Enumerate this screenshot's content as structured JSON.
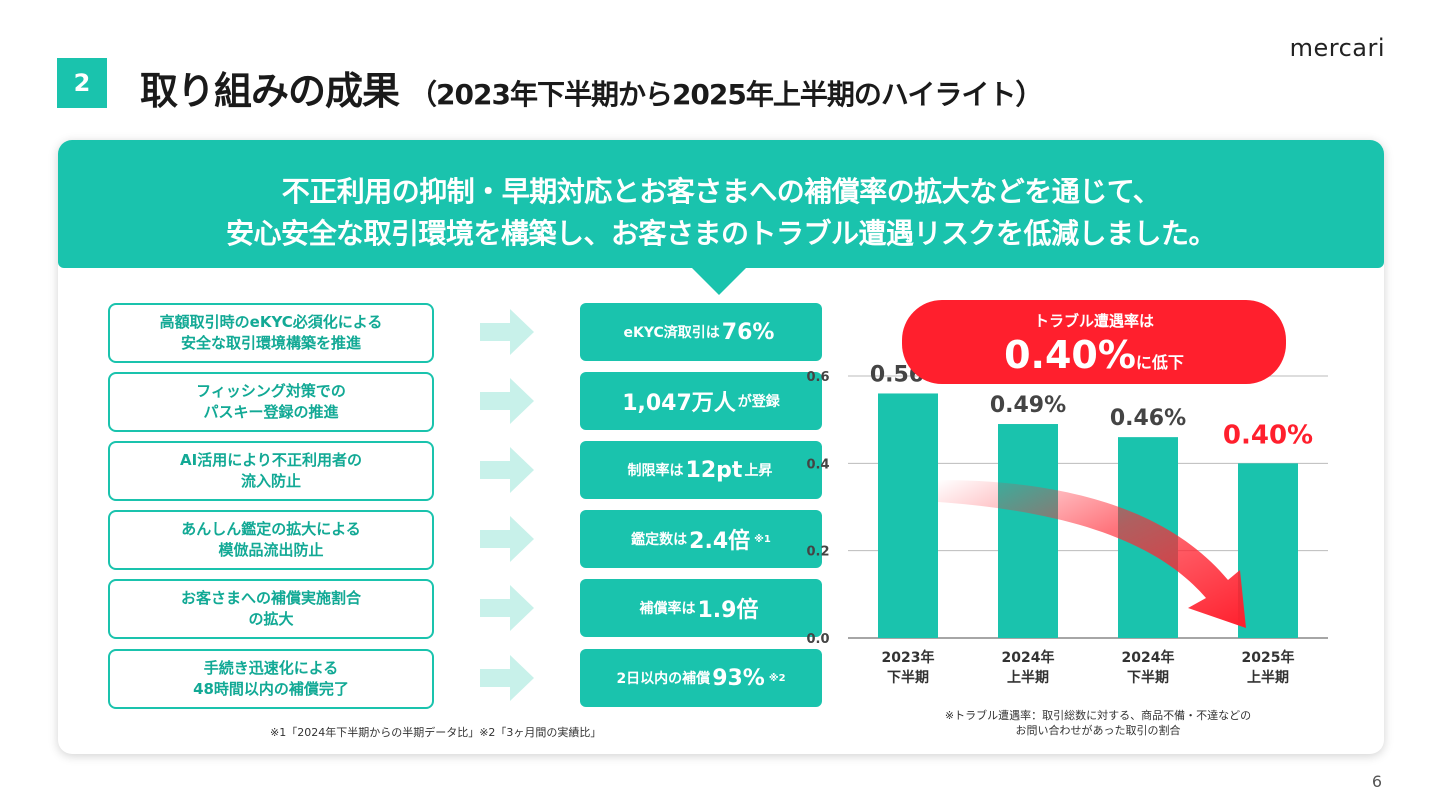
{
  "header": {
    "section_number": "2",
    "title": "取り組みの成果",
    "subtitle": "（2023年下半期から2025年上半期のハイライト）",
    "logo": "mercari"
  },
  "banner": {
    "line1": "不正利用の抑制・早期対応とお客さまへの補償率の拡大などを通じて、",
    "line2": "安心安全な取引環境を構築し、お客さまのトラブル遭遇リスクを低減しました。"
  },
  "rows": [
    {
      "initiative": [
        "高額取引時のeKYC必須化による",
        "安全な取引環境構築を推進"
      ],
      "result": {
        "pre": "eKYC済取引は",
        "big": "76%",
        "post": "",
        "note": ""
      }
    },
    {
      "initiative": [
        "フィッシング対策での",
        "パスキー登録の推進"
      ],
      "result": {
        "pre": "",
        "big": "1,047万人",
        "post": "が登録",
        "note": ""
      }
    },
    {
      "initiative": [
        "AI活用により不正利用者の",
        "流入防止"
      ],
      "result": {
        "pre": "制限率は",
        "big": "12pt",
        "post": "上昇",
        "note": ""
      }
    },
    {
      "initiative": [
        "あんしん鑑定の拡大による",
        "模倣品流出防止"
      ],
      "result": {
        "pre": "鑑定数は",
        "big": "2.4倍",
        "post": "",
        "note": "※1"
      }
    },
    {
      "initiative": [
        "お客さまへの補償実施割合",
        "の拡大"
      ],
      "result": {
        "pre": "補償率は",
        "big": "1.9倍",
        "post": "",
        "note": ""
      }
    },
    {
      "initiative": [
        "手続き迅速化による",
        "48時間以内の補償完了"
      ],
      "result": {
        "pre": "2日以内の補償",
        "big": "93%",
        "post": "",
        "note": "※2"
      }
    }
  ],
  "footnote_left": "※1「2024年下半期からの半期データ比」※2「3ヶ月間の実績比」",
  "footnote_right": [
    "※トラブル遭遇率：取引総数に対する、商品不備・不達などの",
    "お問い合わせがあった取引の割合"
  ],
  "page_number": "6",
  "colors": {
    "accent": "#1ac3ad",
    "highlight": "#ff1f2d",
    "text": "#1a1a1a"
  },
  "chart_data": {
    "type": "bar",
    "categories": [
      [
        "2023年",
        "下半期"
      ],
      [
        "2024年",
        "上半期"
      ],
      [
        "2024年",
        "下半期"
      ],
      [
        "2025年",
        "上半期"
      ]
    ],
    "values": [
      0.56,
      0.49,
      0.46,
      0.4
    ],
    "value_labels": [
      "0.56%",
      "0.49%",
      "0.46%",
      "0.40%"
    ],
    "highlight_index": 3,
    "ylim": [
      0,
      0.6
    ],
    "yticks": [
      "0.0",
      "0.2",
      "0.4",
      "0.6"
    ],
    "ytick_values": [
      0,
      0.2,
      0.4,
      0.6
    ],
    "grid": true,
    "callout": {
      "line1": "トラブル遭遇率は",
      "big": "0.40%",
      "small": "に低下"
    },
    "trend_arrow": "decreasing"
  }
}
